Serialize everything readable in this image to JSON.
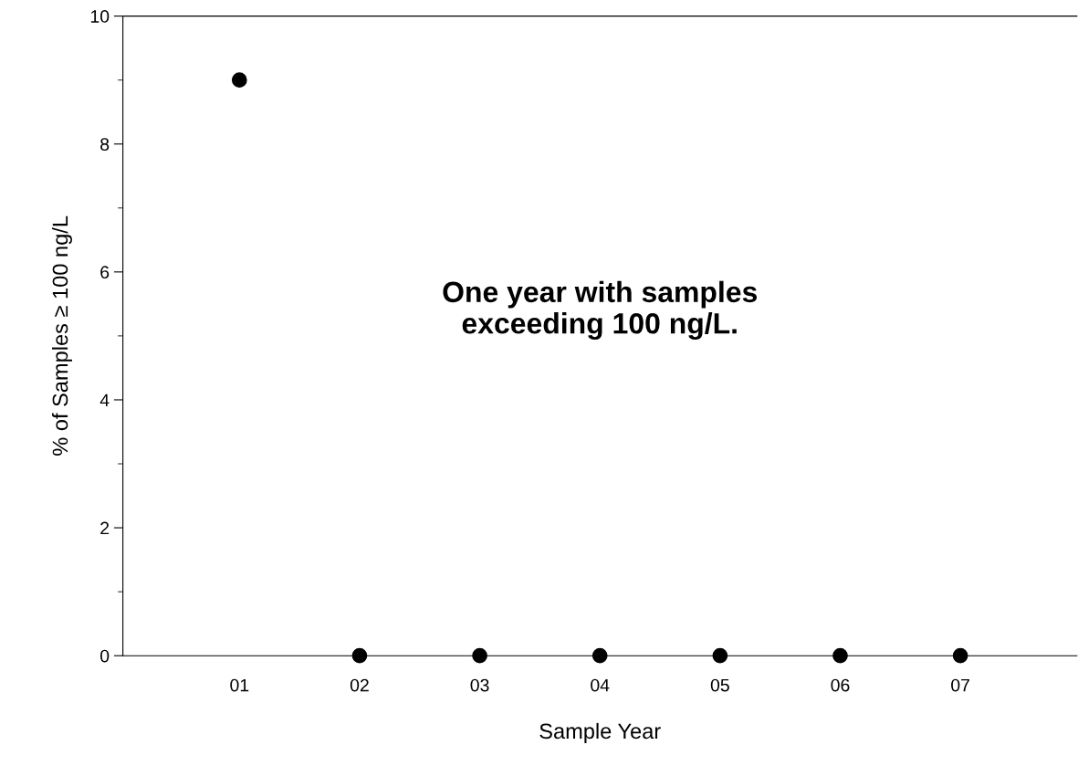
{
  "chart_data": {
    "type": "scatter",
    "xlabel": "Sample Year",
    "ylabel": "% of Samples ≥ 100 ng/L",
    "categories": [
      "01",
      "02",
      "03",
      "04",
      "05",
      "06",
      "07"
    ],
    "values": [
      9.0,
      0,
      0,
      0,
      0,
      0,
      0
    ],
    "color": "#000000",
    "marker": "circle",
    "ylim": [
      0,
      10
    ],
    "yticks": [
      0,
      2,
      4,
      6,
      8,
      10
    ],
    "grid": false,
    "legend": false,
    "annotations": [
      "One year with samples\nexceeding 100 ng/L."
    ]
  }
}
